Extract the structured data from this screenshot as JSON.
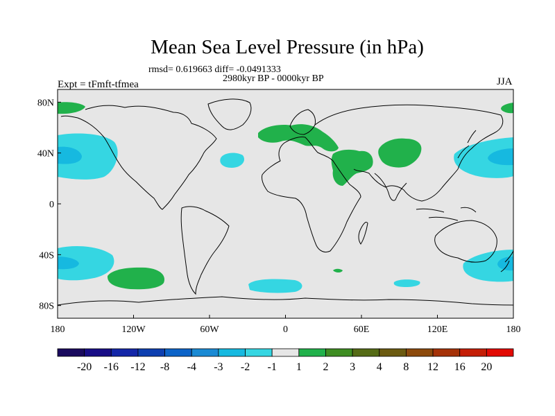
{
  "map": {
    "title": "Mean Sea Level Pressure (in hPa)",
    "stats": "rmsd= 0.619663 diff= -0.0491333",
    "period": "2980kyr BP - 0000kyr BP",
    "experiment": "Expt = tFmft-tfmea",
    "season": "JJA",
    "projection": "cylindrical equidistant",
    "lon_range": [
      -180,
      180
    ],
    "lat_range": [
      -90,
      90
    ],
    "y_ticks": [
      "80N",
      "40N",
      "0",
      "40S",
      "80S"
    ],
    "x_ticks": [
      "180",
      "120W",
      "60W",
      "0",
      "60E",
      "120E",
      "180"
    ],
    "colors": {
      "ocean_land_fill": "#e6e6e6",
      "coastline": "#000000",
      "frame": "#000000",
      "positive_1_2": "#21b14b",
      "negative_1_2": "#35d6e2",
      "negative_2_3": "#16b9e0"
    },
    "anomaly_regions": [
      {
        "name": "north-pacific-west-low",
        "sign": "negative",
        "level": "-2 to -1"
      },
      {
        "name": "north-pacific-west-low-core",
        "sign": "negative",
        "level": "-3 to -2"
      },
      {
        "name": "north-atlantic-low",
        "sign": "negative",
        "level": "-2 to -1"
      },
      {
        "name": "south-pacific-low",
        "sign": "negative",
        "level": "-2 to -1"
      },
      {
        "name": "south-pacific-low-core",
        "sign": "negative",
        "level": "-3 to -2"
      },
      {
        "name": "south-indian-ocean-low",
        "sign": "negative",
        "level": "-2 to -1"
      },
      {
        "name": "south-atlantic-low",
        "sign": "negative",
        "level": "-2 to -1"
      },
      {
        "name": "southern-ocean-low",
        "sign": "negative",
        "level": "-2 to -1"
      },
      {
        "name": "europe-high",
        "sign": "positive",
        "level": "1 to 2"
      },
      {
        "name": "middle-east-high",
        "sign": "positive",
        "level": "1 to 2"
      },
      {
        "name": "central-asia-high",
        "sign": "positive",
        "level": "1 to 2"
      },
      {
        "name": "south-pacific-high",
        "sign": "positive",
        "level": "1 to 2"
      },
      {
        "name": "arctic-high",
        "sign": "positive",
        "level": "1 to 2"
      }
    ]
  },
  "colorbar": {
    "labels": [
      "-20",
      "-16",
      "-12",
      "-8",
      "-4",
      "-3",
      "-2",
      "-1",
      "1",
      "2",
      "3",
      "4",
      "8",
      "12",
      "16",
      "20"
    ],
    "colors": [
      "#1a0a5e",
      "#180d86",
      "#1426a8",
      "#0d3fb0",
      "#0c63c8",
      "#1a8ad4",
      "#16b9e0",
      "#35d6e2",
      "#e6e6e6",
      "#21b14b",
      "#3e8d22",
      "#556b16",
      "#6b5a10",
      "#8c4a0c",
      "#a53208",
      "#c41e06",
      "#e20a04"
    ]
  }
}
